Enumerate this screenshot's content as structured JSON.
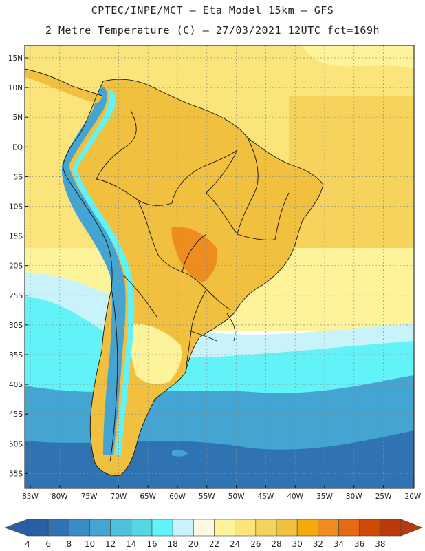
{
  "header": {
    "line1": "CPTEC/INPE/MCT –  Eta Model 15km – GFS",
    "line2": "2 Metre Temperature (C) – 27/03/2021 12UTC fct=169h"
  },
  "axes": {
    "lat_labels": [
      "15N",
      "10N",
      "5N",
      "EQ",
      "5S",
      "10S",
      "15S",
      "20S",
      "25S",
      "30S",
      "35S",
      "40S",
      "45S",
      "50S",
      "55S"
    ],
    "lon_labels": [
      "85W",
      "80W",
      "75W",
      "70W",
      "65W",
      "60W",
      "55W",
      "50W",
      "45W",
      "40W",
      "35W",
      "30W",
      "25W",
      "20W"
    ]
  },
  "colorbar": {
    "ticks": [
      "4",
      "6",
      "8",
      "10",
      "12",
      "14",
      "16",
      "18",
      "20",
      "22",
      "24",
      "26",
      "28",
      "30",
      "32",
      "34",
      "36",
      "38"
    ],
    "colors": [
      "#2a5fa3",
      "#2f73b3",
      "#3a8cc4",
      "#44a5d3",
      "#4ebfdc",
      "#55d6e5",
      "#62f3f9",
      "#c8f3fa",
      "#fdf8e4",
      "#fdf39a",
      "#fbe57a",
      "#f6d35c",
      "#f1c03f",
      "#f1ab0a",
      "#ef8c20",
      "#e66a0f",
      "#cf4a05",
      "#b8390a"
    ],
    "under_color": "#2a5fa3",
    "over_color": "#b8390a"
  },
  "map": {
    "ocean_colors": {
      "tropical": "#fbe57a",
      "tropical_east": "#f6d35c",
      "subtropical": "#fdf39a",
      "mid": "#c8f3fa",
      "cool": "#62f3f9",
      "cold": "#44a5d3",
      "far_south": "#2f73b3"
    },
    "land_colors": {
      "interior": "#f1c03f",
      "hot_core": "#ef8c20",
      "andes_high": "#44a5d3",
      "andes_low": "#62f3f9",
      "patagonia": "#fdf39a"
    },
    "grid_on": true
  }
}
